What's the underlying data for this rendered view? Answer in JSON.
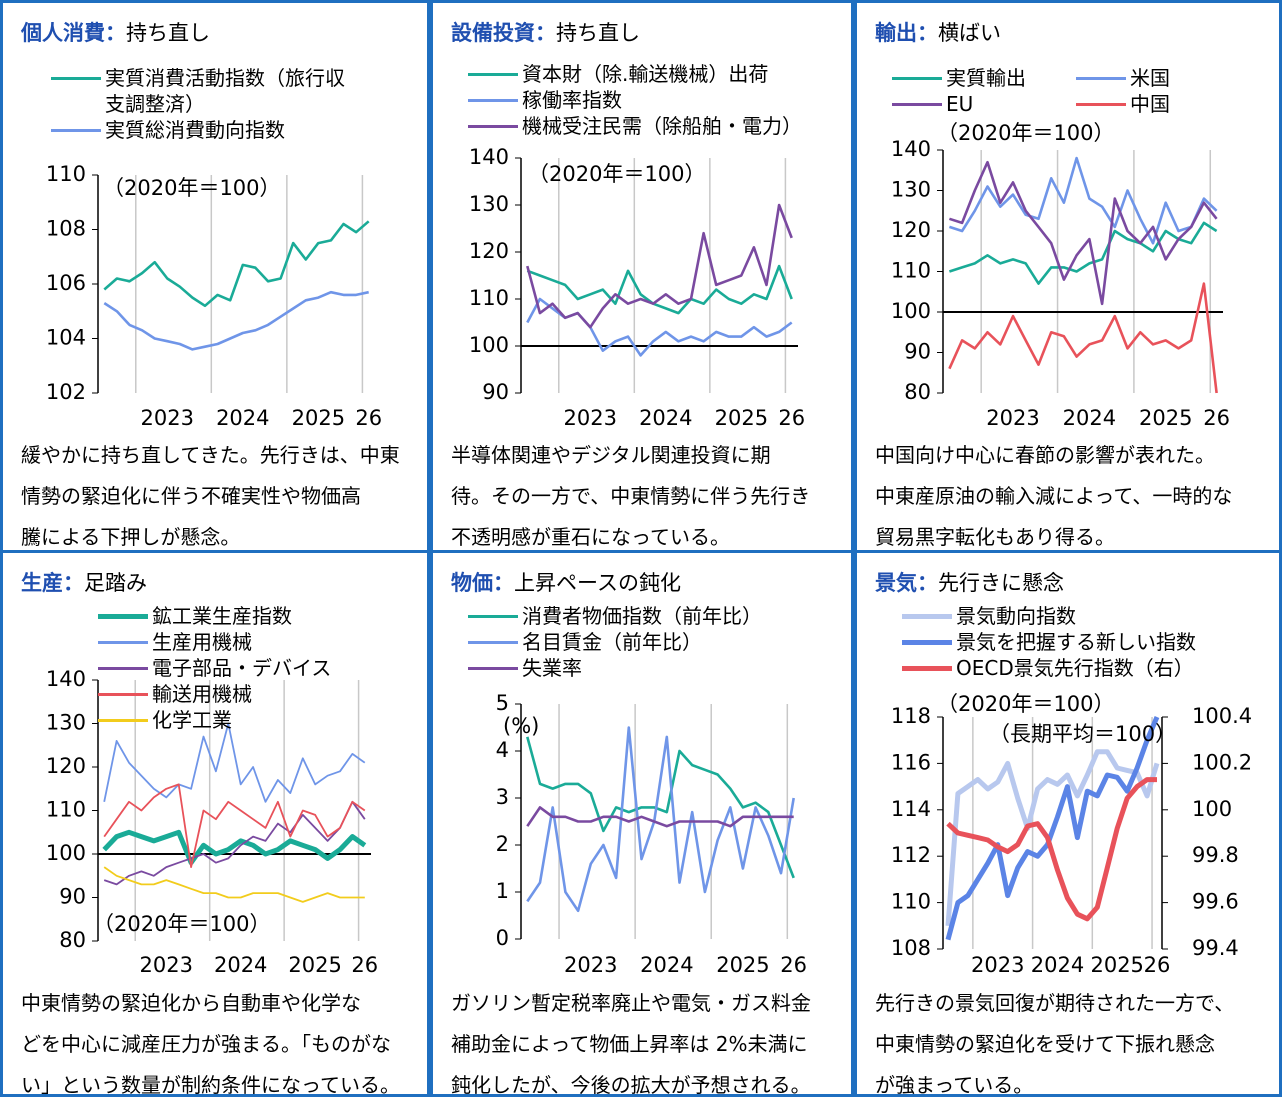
{
  "panels": [
    {
      "heading": "個人消費：",
      "subheading": "持ち直し",
      "caption": [
        "緩やかに持ち直してきた。先行きは、中東",
        "情勢の緊迫化に伴う不確実性や物価高",
        "騰による下押しが懸念。"
      ]
    },
    {
      "heading": "設備投資：",
      "subheading": "持ち直し",
      "caption": [
        "半導体関連やデジタル関連投資に期",
        "待。その一方で、中東情勢に伴う先行き",
        "不透明感が重石になっている。"
      ]
    },
    {
      "heading": "輸出：",
      "subheading": "横ばい",
      "caption": [
        "中国向け中心に春節の影響が表れた。",
        "中東産原油の輸入減によって、一時的な",
        "貿易黒字転化もあり得る。"
      ]
    },
    {
      "heading": "生産：",
      "subheading": "足踏み",
      "caption": [
        "中東情勢の緊迫化から自動車や化学な",
        "どを中心に減産圧力が強まる。「ものがな",
        "い」という数量が制約条件になっている。"
      ]
    },
    {
      "heading": "物価：",
      "subheading": "上昇ペースの鈍化",
      "caption": [
        "ガソリン暫定税率廃止や電気・ガス料金",
        "補助金によって物価上昇率は 2%未満に",
        "鈍化したが、今後の拡大が予想される。"
      ]
    },
    {
      "heading": "景気：",
      "subheading": "先行きに懸念",
      "caption": [
        "先行きの景気回復が期待された一方で、",
        "中東情勢の緊迫化を受けて下振れ懸念",
        "が強まっている。"
      ]
    }
  ],
  "chart_data": [
    {
      "type": "line",
      "annotations": [
        "（2020年＝100）"
      ],
      "categories": [
        null,
        null,
        null,
        null,
        null,
        "2023",
        null,
        null,
        null,
        null,
        null,
        "2024",
        null,
        null,
        null,
        null,
        null,
        "2025",
        null,
        null,
        null,
        "26"
      ],
      "ylim": [
        102,
        110
      ],
      "yticks": [
        102,
        104,
        106,
        108,
        110
      ],
      "series": [
        {
          "name": "実質消費活動指数（旅行収支調整済）",
          "color": "#1aab97",
          "values": [
            105.8,
            106.2,
            106.1,
            106.4,
            106.8,
            106.2,
            105.9,
            105.5,
            105.2,
            105.6,
            105.4,
            106.7,
            106.6,
            106.1,
            106.2,
            107.5,
            106.9,
            107.5,
            107.6,
            108.2,
            107.9,
            108.3
          ]
        },
        {
          "name": "実質総消費動向指数",
          "color": "#6f95e8",
          "values": [
            105.3,
            105.0,
            104.5,
            104.3,
            104.0,
            103.9,
            103.8,
            103.6,
            103.7,
            103.8,
            104.0,
            104.2,
            104.3,
            104.5,
            104.8,
            105.1,
            105.4,
            105.5,
            105.7,
            105.6,
            105.6,
            105.7
          ]
        }
      ]
    },
    {
      "type": "line",
      "annotations": [
        "（2020年＝100）"
      ],
      "categories": [
        null,
        null,
        null,
        null,
        null,
        "2023",
        null,
        null,
        null,
        null,
        null,
        "2024",
        null,
        null,
        null,
        null,
        null,
        "2025",
        null,
        null,
        null,
        "26"
      ],
      "ylim": [
        90,
        140
      ],
      "yticks": [
        90,
        100,
        110,
        120,
        130,
        140
      ],
      "reference_line": 100,
      "series": [
        {
          "name": "資本財（除.輸送機械）出荷",
          "color": "#1aab97",
          "values": [
            116,
            115,
            114,
            113,
            110,
            111,
            112,
            109,
            116,
            111,
            109,
            108,
            107,
            110,
            109,
            112,
            110,
            109,
            111,
            110,
            117,
            110
          ]
        },
        {
          "name": "稼働率指数",
          "color": "#6f95e8",
          "values": [
            105,
            110,
            108,
            106,
            107,
            104,
            99,
            101,
            102,
            98,
            101,
            103,
            101,
            102,
            101,
            103,
            102,
            102,
            104,
            102,
            103,
            105
          ]
        },
        {
          "name": "機械受注民需（除船舶・電力）",
          "color": "#7a4aa0",
          "values": [
            117,
            107,
            109,
            106,
            107,
            104,
            108,
            111,
            109,
            110,
            109,
            111,
            109,
            110,
            124,
            113,
            114,
            115,
            121,
            113,
            130,
            123
          ]
        }
      ]
    },
    {
      "type": "line",
      "annotations": [
        "（2020年＝100）"
      ],
      "categories": [
        null,
        null,
        null,
        null,
        null,
        "2023",
        null,
        null,
        null,
        null,
        null,
        "2024",
        null,
        null,
        null,
        null,
        null,
        "2025",
        null,
        null,
        null,
        "26"
      ],
      "ylim": [
        80,
        140
      ],
      "yticks": [
        80,
        90,
        100,
        110,
        120,
        130,
        140
      ],
      "reference_line": 100,
      "series": [
        {
          "name": "実質輸出",
          "color": "#1aab97",
          "values": [
            110,
            111,
            112,
            114,
            112,
            113,
            112,
            107,
            111,
            111,
            110,
            112,
            113,
            120,
            118,
            117,
            115,
            120,
            118,
            117,
            122,
            120
          ]
        },
        {
          "name": "米国",
          "color": "#6f95e8",
          "values": [
            121,
            120,
            125,
            131,
            126,
            129,
            124,
            123,
            133,
            127,
            138,
            128,
            126,
            121,
            130,
            123,
            117,
            127,
            120,
            121,
            128,
            125
          ]
        },
        {
          "name": "EU",
          "color": "#7a4aa0",
          "values": [
            123,
            122,
            130,
            137,
            127,
            132,
            125,
            121,
            117,
            108,
            114,
            118,
            102,
            128,
            120,
            117,
            121,
            113,
            118,
            121,
            127,
            123
          ]
        },
        {
          "name": "中国",
          "color": "#e8525a",
          "values": [
            86,
            93,
            91,
            95,
            92,
            99,
            93,
            87,
            95,
            94,
            89,
            92,
            93,
            99,
            91,
            95,
            92,
            93,
            91,
            93,
            107,
            80
          ]
        }
      ]
    },
    {
      "type": "line",
      "annotations": [
        "（2020年＝100）"
      ],
      "categories": [
        null,
        null,
        null,
        null,
        null,
        "2023",
        null,
        null,
        null,
        null,
        null,
        "2024",
        null,
        null,
        null,
        null,
        null,
        "2025",
        null,
        null,
        null,
        "26"
      ],
      "ylim": [
        80,
        140
      ],
      "yticks": [
        80,
        90,
        100,
        110,
        120,
        130,
        140
      ],
      "reference_line": 100,
      "series": [
        {
          "name": "鉱工業生産指数",
          "color": "#1aab97",
          "values": [
            101,
            104,
            105,
            104,
            103,
            104,
            105,
            98,
            102,
            100,
            101,
            103,
            102,
            100,
            101,
            103,
            102,
            101,
            99,
            101,
            104,
            102
          ]
        },
        {
          "name": "生産用機械",
          "color": "#6f95e8",
          "values": [
            112,
            126,
            121,
            118,
            115,
            113,
            116,
            115,
            127,
            119,
            130,
            116,
            120,
            112,
            117,
            114,
            122,
            116,
            118,
            119,
            123,
            121
          ]
        },
        {
          "name": "電子部品・デバイス",
          "color": "#7a4aa0",
          "values": [
            94,
            93,
            95,
            96,
            95,
            97,
            98,
            99,
            100,
            98,
            99,
            102,
            104,
            103,
            107,
            105,
            109,
            106,
            103,
            106,
            112,
            108
          ]
        },
        {
          "name": "輸送用機械",
          "color": "#e8525a",
          "values": [
            104,
            108,
            112,
            110,
            113,
            115,
            116,
            97,
            110,
            108,
            112,
            110,
            108,
            106,
            112,
            104,
            110,
            109,
            104,
            106,
            112,
            110
          ]
        },
        {
          "name": "化学工業",
          "color": "#f2cc1c",
          "values": [
            97,
            95,
            94,
            93,
            93,
            94,
            93,
            92,
            91,
            91,
            90,
            90,
            91,
            91,
            91,
            90,
            89,
            90,
            91,
            90,
            90,
            90
          ]
        }
      ]
    },
    {
      "type": "line",
      "annotations": [
        "(%)"
      ],
      "categories": [
        null,
        null,
        null,
        null,
        null,
        "2023",
        null,
        null,
        null,
        null,
        null,
        "2024",
        null,
        null,
        null,
        null,
        null,
        "2025",
        null,
        null,
        null,
        "26"
      ],
      "ylim": [
        0,
        5
      ],
      "yticks": [
        0,
        1,
        2,
        3,
        4,
        5
      ],
      "series": [
        {
          "name": "消費者物価指数（前年比）",
          "color": "#1aab97",
          "values": [
            4.3,
            3.3,
            3.2,
            3.3,
            3.3,
            3.1,
            2.3,
            2.8,
            2.7,
            2.8,
            2.8,
            2.7,
            4.0,
            3.7,
            3.6,
            3.5,
            3.2,
            2.8,
            2.9,
            2.7,
            2.0,
            1.3
          ]
        },
        {
          "name": "名目賃金（前年比）",
          "color": "#6f95e8",
          "values": [
            0.8,
            1.2,
            2.8,
            1.0,
            0.6,
            1.6,
            2.0,
            1.3,
            4.5,
            1.7,
            2.5,
            4.3,
            1.2,
            2.7,
            1.0,
            2.1,
            2.8,
            1.5,
            2.8,
            2.2,
            1.4,
            3.0
          ]
        },
        {
          "name": "失業率",
          "color": "#7a4aa0",
          "values": [
            2.4,
            2.8,
            2.6,
            2.6,
            2.5,
            2.5,
            2.6,
            2.6,
            2.5,
            2.6,
            2.5,
            2.4,
            2.5,
            2.5,
            2.5,
            2.5,
            2.4,
            2.6,
            2.6,
            2.6,
            2.6,
            2.6
          ]
        }
      ]
    },
    {
      "type": "line",
      "annotations": [
        "（2020年＝100）",
        "（長期平均＝100）"
      ],
      "categories": [
        null,
        null,
        null,
        null,
        null,
        "2023",
        null,
        null,
        null,
        null,
        null,
        "2024",
        null,
        null,
        null,
        null,
        null,
        "2025",
        null,
        null,
        null,
        "26"
      ],
      "ylim": [
        108,
        118
      ],
      "yticks": [
        108,
        110,
        112,
        114,
        116,
        118
      ],
      "y2lim": [
        99.4,
        100.4
      ],
      "y2ticks": [
        99.4,
        99.6,
        99.8,
        100,
        100.2,
        100.4
      ],
      "series": [
        {
          "name": "景気動向指数",
          "color": "#b8c8ee",
          "values": [
            109,
            114.7,
            115,
            115.3,
            114.9,
            115.2,
            116,
            114.5,
            113.2,
            114.9,
            115.3,
            115.1,
            115.5,
            114.6,
            115.5,
            116.5,
            116.5,
            115.8,
            115.7,
            115.6,
            114.6,
            116
          ]
        },
        {
          "name": "景気を把握する新しい指数",
          "color": "#5b84e6",
          "values": [
            108.4,
            110,
            110.3,
            111,
            111.7,
            112.5,
            110.3,
            111.5,
            112.2,
            112,
            112.5,
            113.7,
            115,
            112.8,
            114.8,
            114.6,
            115.5,
            115.4,
            114.8,
            115.8,
            117,
            118
          ]
        },
        {
          "name": "OECD景気先行指数（右）",
          "color": "#e8525a",
          "axis": "y2",
          "values": [
            99.94,
            99.9,
            99.89,
            99.88,
            99.87,
            99.84,
            99.82,
            99.85,
            99.93,
            99.94,
            99.88,
            99.74,
            99.62,
            99.55,
            99.53,
            99.58,
            99.75,
            99.92,
            100.05,
            100.1,
            100.13,
            100.13
          ]
        }
      ]
    }
  ]
}
